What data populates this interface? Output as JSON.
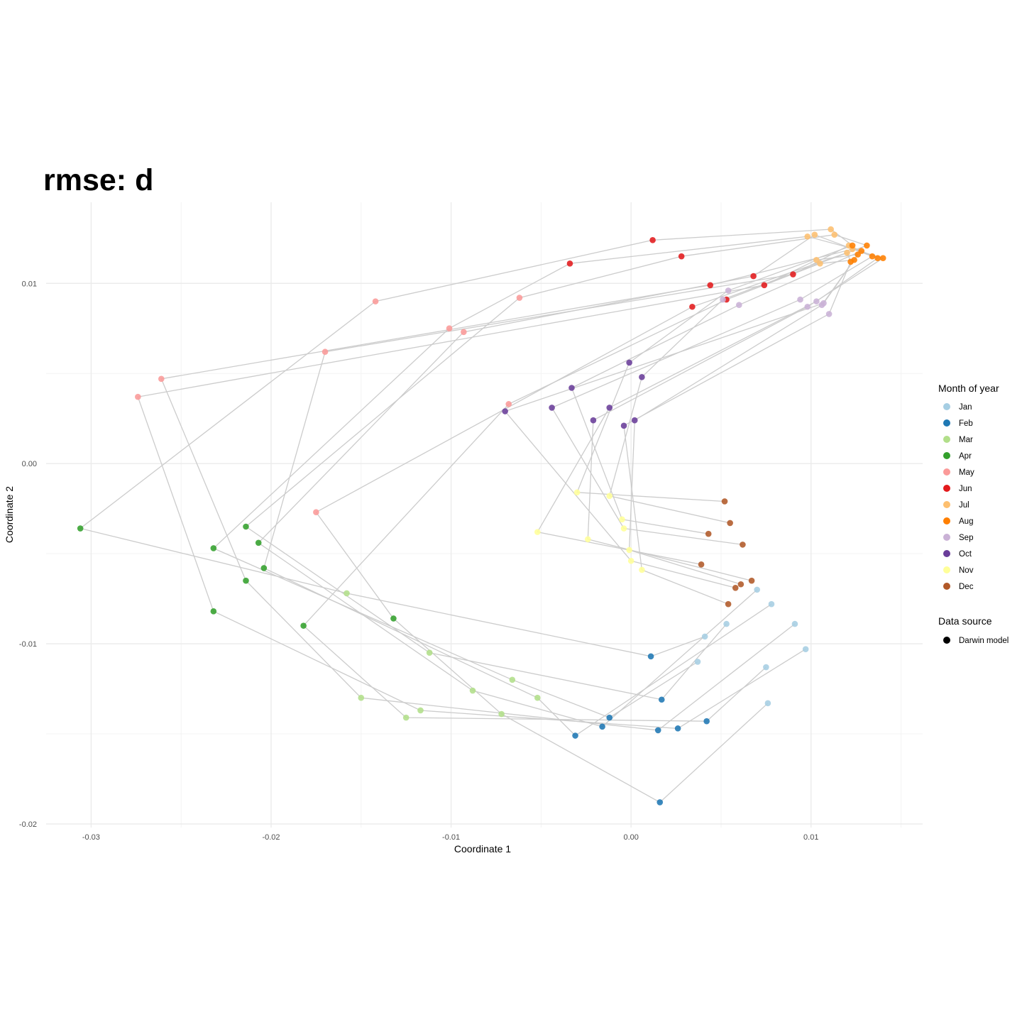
{
  "chart_data": {
    "type": "scatter",
    "title": "rmse: d",
    "xlabel": "Coordinate 1",
    "ylabel": "Coordinate 2",
    "xlim": [
      -0.0325,
      0.0162
    ],
    "ylim": [
      -0.0202,
      0.0145
    ],
    "x_ticks": [
      -0.03,
      -0.02,
      -0.01,
      0.0,
      0.01
    ],
    "x_tick_labels": [
      "-0.03",
      "-0.02",
      "-0.01",
      "0.00",
      "0.01"
    ],
    "y_ticks": [
      -0.02,
      -0.01,
      0.0,
      0.01
    ],
    "y_tick_labels": [
      "-0.02",
      "-0.01",
      "0.00",
      "0.01"
    ],
    "grid": true,
    "legend_placement": "right",
    "legend": {
      "month_title": "Month of year",
      "source_title": "Data source",
      "source_label": "Darwin model",
      "source_color": "#000000"
    },
    "line_color": "#cccccc",
    "series": [
      {
        "name": "Jan",
        "color": "#A6CEE3",
        "x": [
          0.0041,
          0.0053,
          0.0037,
          0.007,
          0.0078,
          0.0091,
          0.0097,
          0.0075,
          0.0076
        ],
        "y": [
          -0.0096,
          -0.0089,
          -0.011,
          -0.007,
          -0.0078,
          -0.0089,
          -0.0103,
          -0.0113,
          -0.0133
        ]
      },
      {
        "name": "Feb",
        "color": "#1F78B4",
        "x": [
          0.0011,
          0.0017,
          -0.0012,
          -0.0016,
          -0.0031,
          0.0015,
          0.0026,
          0.0042,
          0.0016
        ],
        "y": [
          -0.0107,
          -0.0131,
          -0.0141,
          -0.0146,
          -0.0151,
          -0.0148,
          -0.0147,
          -0.0143,
          -0.0188
        ]
      },
      {
        "name": "Mar",
        "color": "#B2DF8A",
        "x": [
          -0.0158,
          -0.0112,
          -0.0066,
          -0.0088,
          -0.0052,
          -0.015,
          -0.0117,
          -0.0125,
          -0.0072
        ],
        "y": [
          -0.0072,
          -0.0105,
          -0.012,
          -0.0126,
          -0.013,
          -0.013,
          -0.0137,
          -0.0141,
          -0.0139
        ]
      },
      {
        "name": "Apr",
        "color": "#33A02C",
        "x": [
          -0.0306,
          -0.0214,
          -0.0232,
          -0.0207,
          -0.0204,
          -0.0214,
          -0.0232,
          -0.0182,
          -0.0132
        ],
        "y": [
          -0.0036,
          -0.0035,
          -0.0047,
          -0.0044,
          -0.0058,
          -0.0065,
          -0.0082,
          -0.009,
          -0.0086
        ]
      },
      {
        "name": "May",
        "color": "#FB9A99",
        "x": [
          -0.0142,
          -0.0062,
          -0.0101,
          -0.0093,
          -0.017,
          -0.0261,
          -0.0274,
          -0.0068,
          -0.0175
        ],
        "y": [
          0.009,
          0.0092,
          0.0075,
          0.0073,
          0.0062,
          0.0047,
          0.0037,
          0.0033,
          -0.0027
        ]
      },
      {
        "name": "Jun",
        "color": "#E31A1C",
        "x": [
          0.0012,
          0.0028,
          -0.0034,
          0.0068,
          0.009,
          0.0044,
          0.0074,
          0.0053,
          0.0034
        ],
        "y": [
          0.0124,
          0.0115,
          0.0111,
          0.0104,
          0.0105,
          0.0099,
          0.0099,
          0.0091,
          0.0087
        ]
      },
      {
        "name": "Jul",
        "color": "#FDBF6F",
        "x": [
          0.0111,
          0.0113,
          0.0098,
          0.0102,
          0.0121,
          0.0123,
          0.0103,
          0.0105,
          0.012
        ],
        "y": [
          0.013,
          0.0127,
          0.0126,
          0.0127,
          0.0121,
          0.0119,
          0.0113,
          0.0111,
          0.0117
        ]
      },
      {
        "name": "Aug",
        "color": "#FF7F00",
        "x": [
          0.0123,
          0.0131,
          0.0128,
          0.0134,
          0.0137,
          0.014,
          0.0126,
          0.0124,
          0.0122
        ],
        "y": [
          0.0121,
          0.0121,
          0.0118,
          0.0115,
          0.0114,
          0.0114,
          0.0116,
          0.0113,
          0.0112
        ]
      },
      {
        "name": "Sep",
        "color": "#CAB2D6",
        "x": [
          0.0054,
          0.0051,
          0.006,
          0.0094,
          0.0103,
          0.0098,
          0.0106,
          0.0107,
          0.011
        ],
        "y": [
          0.0096,
          0.0091,
          0.0088,
          0.0091,
          0.009,
          0.0087,
          0.0088,
          0.0089,
          0.0083
        ]
      },
      {
        "name": "Oct",
        "color": "#6A3D9A",
        "x": [
          -0.0001,
          0.0006,
          -0.0033,
          -0.0044,
          -0.0012,
          -0.0021,
          0.0002,
          -0.007,
          -0.0004
        ],
        "y": [
          0.0056,
          0.0048,
          0.0042,
          0.0031,
          0.0031,
          0.0024,
          0.0024,
          0.0029,
          0.0021
        ]
      },
      {
        "name": "Nov",
        "color": "#FFFF99",
        "x": [
          -0.003,
          -0.0012,
          -0.0005,
          -0.0004,
          -0.0052,
          -0.0024,
          -0.0001,
          0.0,
          0.0006
        ],
        "y": [
          -0.0016,
          -0.0018,
          -0.0031,
          -0.0036,
          -0.0038,
          -0.0042,
          -0.0048,
          -0.0054,
          -0.0059
        ]
      },
      {
        "name": "Dec",
        "color": "#B15928",
        "x": [
          0.0052,
          0.0055,
          0.0043,
          0.0062,
          0.0039,
          0.0067,
          0.0061,
          0.0058,
          0.0054
        ],
        "y": [
          -0.0021,
          -0.0033,
          -0.0039,
          -0.0045,
          -0.0056,
          -0.0065,
          -0.0067,
          -0.0069,
          -0.0078
        ]
      }
    ]
  }
}
